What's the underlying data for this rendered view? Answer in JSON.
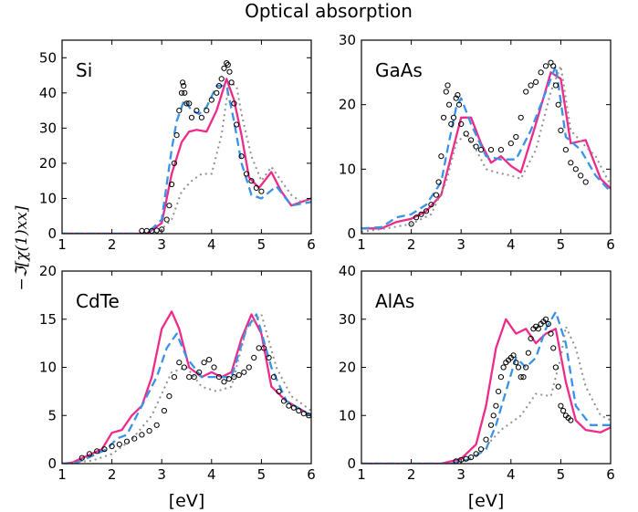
{
  "figure": {
    "title": "Optical absorption",
    "ylabel": "−ℑ[χ(1)xx]"
  },
  "styles": {
    "measured": {
      "color": "#000000",
      "marker": "open-circle"
    },
    "pink_solid": {
      "color": "#ee2b8a",
      "dash": "solid"
    },
    "blue_dashed": {
      "color": "#3a92e6",
      "dash": "dashed"
    },
    "gray_dotted": {
      "color": "#909090",
      "dash": "dotted"
    }
  },
  "chart_data": [
    {
      "type": "line",
      "label": "Si",
      "xlabel": "",
      "xlim": [
        1,
        6
      ],
      "ylim": [
        0,
        55
      ],
      "xticks": [
        1,
        2,
        3,
        4,
        5,
        6
      ],
      "yticks": [
        0,
        10,
        20,
        30,
        40,
        50
      ],
      "series": [
        {
          "style": "pink_solid",
          "x": [
            1,
            2.7,
            3.0,
            3.2,
            3.4,
            3.55,
            3.7,
            3.9,
            4.1,
            4.3,
            4.45,
            4.6,
            4.75,
            4.95,
            5.2,
            5.4,
            5.6,
            6.0
          ],
          "y": [
            0,
            0,
            3,
            17,
            26,
            29,
            29.5,
            29,
            35,
            44,
            38,
            28,
            16,
            13,
            17.5,
            12,
            8,
            10
          ]
        },
        {
          "style": "blue_dashed",
          "x": [
            1,
            2.7,
            3.0,
            3.2,
            3.3,
            3.45,
            3.6,
            3.75,
            3.9,
            4.1,
            4.3,
            4.45,
            4.6,
            4.8,
            5.0,
            5.3,
            5.6,
            6.0
          ],
          "y": [
            0,
            0,
            4,
            24,
            32,
            38,
            35,
            34,
            36,
            42,
            42,
            32,
            20,
            11,
            10,
            13.5,
            8,
            9
          ]
        },
        {
          "style": "gray_dotted",
          "x": [
            1,
            2.9,
            3.2,
            3.4,
            3.6,
            3.8,
            4.0,
            4.2,
            4.35,
            4.5,
            4.6,
            4.8,
            5.0,
            5.2,
            5.4,
            5.6,
            5.8,
            6.0
          ],
          "y": [
            0,
            0,
            4,
            12,
            15,
            17,
            17,
            28,
            43,
            42,
            34,
            22,
            15,
            19,
            15,
            11,
            9,
            10
          ]
        },
        {
          "style": "measured",
          "x": [
            2.6,
            2.7,
            2.8,
            2.9,
            3.0,
            3.1,
            3.15,
            3.2,
            3.25,
            3.3,
            3.35,
            3.4,
            3.42,
            3.44,
            3.46,
            3.5,
            3.55,
            3.6,
            3.7,
            3.8,
            3.9,
            4.0,
            4.1,
            4.15,
            4.2,
            4.25,
            4.3,
            4.33,
            4.36,
            4.4,
            4.45,
            4.5,
            4.6,
            4.7,
            4.8,
            4.9,
            5.0
          ],
          "y": [
            0.8,
            0.8,
            0.8,
            0.9,
            1.2,
            4,
            8,
            14,
            20,
            28,
            35,
            40,
            43,
            42,
            40,
            37,
            37,
            33,
            35,
            33,
            35,
            38,
            40,
            42,
            44,
            47,
            48.5,
            48,
            46,
            43,
            37,
            31,
            22,
            17,
            15,
            13,
            12
          ]
        }
      ]
    },
    {
      "type": "line",
      "label": "GaAs",
      "xlabel": "",
      "xlim": [
        1,
        6
      ],
      "ylim": [
        0,
        30
      ],
      "xticks": [
        1,
        2,
        3,
        4,
        5,
        6
      ],
      "yticks": [
        0,
        10,
        20,
        30
      ],
      "series": [
        {
          "style": "pink_solid",
          "x": [
            1,
            1.4,
            1.7,
            2.0,
            2.3,
            2.6,
            2.8,
            3.0,
            3.2,
            3.4,
            3.6,
            3.8,
            4.0,
            4.2,
            4.5,
            4.8,
            5.0,
            5.2,
            5.5,
            5.8,
            6.0
          ],
          "y": [
            0.8,
            0.8,
            1.8,
            2.3,
            3.5,
            6,
            12,
            18,
            18,
            14,
            11,
            12,
            10.5,
            9.5,
            17,
            25,
            24,
            14,
            14.5,
            8.5,
            7
          ]
        },
        {
          "style": "blue_dashed",
          "x": [
            1,
            1.4,
            1.7,
            2.0,
            2.3,
            2.6,
            2.75,
            2.9,
            3.0,
            3.2,
            3.5,
            3.8,
            4.1,
            4.4,
            4.7,
            4.9,
            5.1,
            5.4,
            5.7,
            6.0
          ],
          "y": [
            0.8,
            1,
            2.5,
            3,
            4.5,
            8,
            14,
            19.5,
            21,
            17,
            12,
            11.5,
            11.5,
            16,
            22,
            26,
            15,
            13,
            9,
            6.5
          ]
        },
        {
          "style": "gray_dotted",
          "x": [
            1,
            1.5,
            2.0,
            2.4,
            2.7,
            2.9,
            3.1,
            3.3,
            3.5,
            3.7,
            4.0,
            4.2,
            4.5,
            4.8,
            5.0,
            5.2,
            5.5,
            5.7,
            6.0
          ],
          "y": [
            0.3,
            0.8,
            1.5,
            3,
            8,
            14,
            15.5,
            13,
            10,
            9.5,
            9,
            8.5,
            13,
            22,
            26,
            16,
            13.5,
            12,
            7.5
          ]
        },
        {
          "style": "measured",
          "x": [
            2.0,
            2.1,
            2.2,
            2.3,
            2.4,
            2.5,
            2.55,
            2.6,
            2.65,
            2.7,
            2.73,
            2.76,
            2.8,
            2.85,
            2.9,
            2.93,
            2.96,
            3.0,
            3.1,
            3.2,
            3.3,
            3.4,
            3.6,
            3.8,
            4.0,
            4.1,
            4.2,
            4.3,
            4.4,
            4.5,
            4.6,
            4.7,
            4.8,
            4.85,
            4.9,
            4.95,
            5.0,
            5.1,
            5.2,
            5.3,
            5.4,
            5.5
          ],
          "y": [
            1.5,
            2.5,
            3,
            3.5,
            4.5,
            6,
            8,
            12,
            18,
            22,
            23,
            20,
            17,
            18,
            21,
            21.5,
            20,
            17,
            15.5,
            14.5,
            13.5,
            13,
            13,
            13,
            14,
            15,
            18,
            22,
            23,
            23.5,
            25,
            26,
            26.5,
            26,
            23,
            20,
            16,
            13,
            11,
            10,
            9,
            8
          ]
        }
      ]
    },
    {
      "type": "line",
      "label": "CdTe",
      "xlabel": "[eV]",
      "xlim": [
        1,
        6
      ],
      "ylim": [
        0,
        20
      ],
      "xticks": [
        1,
        2,
        3,
        4,
        5,
        6
      ],
      "yticks": [
        0,
        5,
        10,
        15,
        20
      ],
      "series": [
        {
          "style": "pink_solid",
          "x": [
            1,
            1.2,
            1.5,
            1.8,
            2.0,
            2.2,
            2.4,
            2.6,
            2.8,
            3.0,
            3.2,
            3.35,
            3.55,
            3.8,
            4.0,
            4.2,
            4.4,
            4.6,
            4.8,
            5.0,
            5.2,
            5.5,
            6.0
          ],
          "y": [
            0,
            0.1,
            0.8,
            1.5,
            3.2,
            3.5,
            5,
            6,
            9,
            14,
            15.8,
            14,
            10,
            9,
            9.5,
            9,
            9.5,
            13,
            15.5,
            13.5,
            8,
            6.5,
            5
          ]
        },
        {
          "style": "blue_dashed",
          "x": [
            1,
            1.3,
            1.6,
            1.9,
            2.1,
            2.3,
            2.6,
            2.9,
            3.1,
            3.3,
            3.5,
            3.8,
            4.1,
            4.4,
            4.7,
            4.9,
            5.2,
            5.5,
            6.0
          ],
          "y": [
            0,
            0.1,
            0.8,
            1.5,
            2.6,
            3,
            6,
            9,
            12,
            13.5,
            11,
            9,
            9,
            9,
            14,
            15.5,
            10,
            6.5,
            5
          ]
        },
        {
          "style": "gray_dotted",
          "x": [
            1,
            1.6,
            2.0,
            2.4,
            2.8,
            3.2,
            3.5,
            3.8,
            4.1,
            4.4,
            4.7,
            5.0,
            5.3,
            5.6,
            6.0
          ],
          "y": [
            0,
            0.3,
            1,
            2.5,
            5,
            9.5,
            10,
            8,
            7.5,
            8,
            14,
            15.5,
            10,
            7,
            5.5
          ]
        },
        {
          "style": "measured",
          "x": [
            1.4,
            1.55,
            1.7,
            1.85,
            2.0,
            2.15,
            2.3,
            2.45,
            2.6,
            2.75,
            2.9,
            3.05,
            3.15,
            3.25,
            3.35,
            3.45,
            3.55,
            3.65,
            3.75,
            3.85,
            3.95,
            4.05,
            4.15,
            4.25,
            4.35,
            4.45,
            4.55,
            4.65,
            4.75,
            4.85,
            4.95,
            5.05,
            5.15,
            5.25,
            5.35,
            5.45,
            5.55,
            5.65,
            5.75,
            5.85,
            5.95
          ],
          "y": [
            0.6,
            1,
            1.3,
            1.5,
            1.8,
            2,
            2.3,
            2.6,
            3,
            3.4,
            4,
            5.5,
            7,
            9,
            10.5,
            10,
            9,
            9,
            9.5,
            10.5,
            10.8,
            10,
            9,
            8.5,
            8.8,
            9,
            9.2,
            9.5,
            10,
            11,
            12,
            12,
            11,
            9,
            7.5,
            6.5,
            6,
            5.8,
            5.5,
            5.2,
            5
          ]
        }
      ]
    },
    {
      "type": "line",
      "label": "AlAs",
      "xlabel": "[eV]",
      "xlim": [
        1,
        6
      ],
      "ylim": [
        0,
        40
      ],
      "xticks": [
        1,
        2,
        3,
        4,
        5,
        6
      ],
      "yticks": [
        0,
        10,
        20,
        30,
        40
      ],
      "series": [
        {
          "style": "pink_solid",
          "x": [
            1,
            2.6,
            3.0,
            3.3,
            3.5,
            3.7,
            3.9,
            4.1,
            4.3,
            4.5,
            4.7,
            4.9,
            5.1,
            5.3,
            5.5,
            5.8,
            6.0
          ],
          "y": [
            0,
            0,
            1,
            4,
            12,
            24,
            30,
            27,
            28,
            25,
            27,
            28,
            17,
            9,
            7,
            6.5,
            7.5
          ]
        },
        {
          "style": "blue_dashed",
          "x": [
            1,
            2.8,
            3.2,
            3.5,
            3.7,
            3.9,
            4.1,
            4.3,
            4.5,
            4.7,
            4.9,
            5.1,
            5.3,
            5.6,
            6.0
          ],
          "y": [
            0,
            0,
            1,
            3,
            8,
            15,
            22,
            20,
            22,
            28,
            31.5,
            25,
            12,
            8,
            8
          ]
        },
        {
          "style": "gray_dotted",
          "x": [
            1,
            3.0,
            3.4,
            3.8,
            4.2,
            4.5,
            4.8,
            5.0,
            5.1,
            5.3,
            5.5,
            5.8,
            6.0
          ],
          "y": [
            0,
            0,
            2.5,
            7,
            10,
            14.5,
            14,
            22,
            28.5,
            24,
            16,
            10,
            9
          ]
        },
        {
          "style": "measured",
          "x": [
            2.9,
            3.0,
            3.1,
            3.2,
            3.3,
            3.4,
            3.5,
            3.6,
            3.65,
            3.7,
            3.75,
            3.8,
            3.85,
            3.9,
            3.95,
            4.0,
            4.05,
            4.1,
            4.15,
            4.2,
            4.25,
            4.3,
            4.35,
            4.4,
            4.45,
            4.5,
            4.55,
            4.6,
            4.65,
            4.7,
            4.75,
            4.8,
            4.85,
            4.9,
            4.95,
            5.0,
            5.05,
            5.1,
            5.15,
            5.2
          ],
          "y": [
            0.5,
            0.8,
            1,
            1.3,
            2,
            3,
            5,
            8,
            10,
            12,
            15,
            18,
            20,
            21,
            21.5,
            22,
            22.5,
            21,
            20,
            18,
            18,
            20,
            23,
            26,
            28,
            28.5,
            28,
            29,
            29.5,
            30,
            29,
            27,
            24,
            20,
            16,
            12,
            11,
            10,
            9.5,
            9
          ]
        }
      ]
    }
  ]
}
